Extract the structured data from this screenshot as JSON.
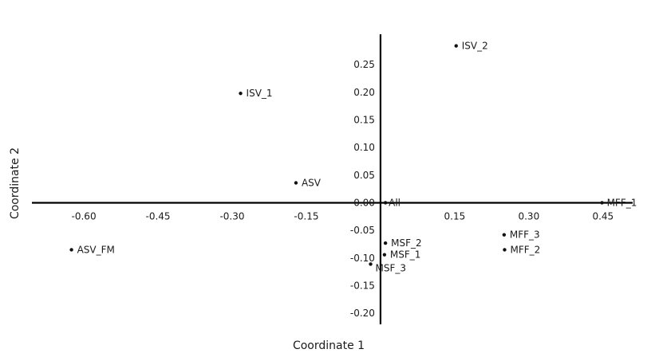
{
  "chart_data": {
    "type": "scatter",
    "title": "",
    "xlabel": "Coordinate 1",
    "ylabel": "Coordinate 2",
    "xlim": [
      -0.705,
      0.51
    ],
    "ylim": [
      -0.22,
      0.305
    ],
    "x_ticks": [
      -0.6,
      -0.45,
      -0.3,
      -0.15,
      0.15,
      0.3,
      0.45
    ],
    "y_ticks": [
      0.25,
      0.2,
      0.15,
      0.1,
      0.05,
      0.0,
      -0.05,
      -0.1,
      -0.15,
      -0.2
    ],
    "x_tick_labels": [
      "-0.60",
      "-0.45",
      "-0.30",
      "-0.15",
      "0.15",
      "0.30",
      "0.45"
    ],
    "y_tick_labels": [
      "0.25",
      "0.20",
      "0.15",
      "0.10",
      "0.05",
      "0.00",
      "-0.05",
      "-0.10",
      "-0.15",
      "-0.20"
    ],
    "grid": false,
    "points": [
      {
        "label": "ISV_2",
        "x": 0.153,
        "y": 0.284
      },
      {
        "label": "ISV_1",
        "x": -0.283,
        "y": 0.198
      },
      {
        "label": "ASV",
        "x": -0.171,
        "y": 0.036
      },
      {
        "label": "All",
        "x": 0.01,
        "y": 0.0
      },
      {
        "label": "MFF_1",
        "x": 0.448,
        "y": 0.0
      },
      {
        "label": "ASV_FM",
        "x": -0.625,
        "y": -0.085
      },
      {
        "label": "MSF_2",
        "x": 0.01,
        "y": -0.073
      },
      {
        "label": "MSF_1",
        "x": 0.008,
        "y": -0.094
      },
      {
        "label": "MSF_3",
        "x": -0.02,
        "y": -0.111
      },
      {
        "label": "MFF_3",
        "x": 0.25,
        "y": -0.058
      },
      {
        "label": "MFF_2",
        "x": 0.251,
        "y": -0.085
      }
    ]
  }
}
